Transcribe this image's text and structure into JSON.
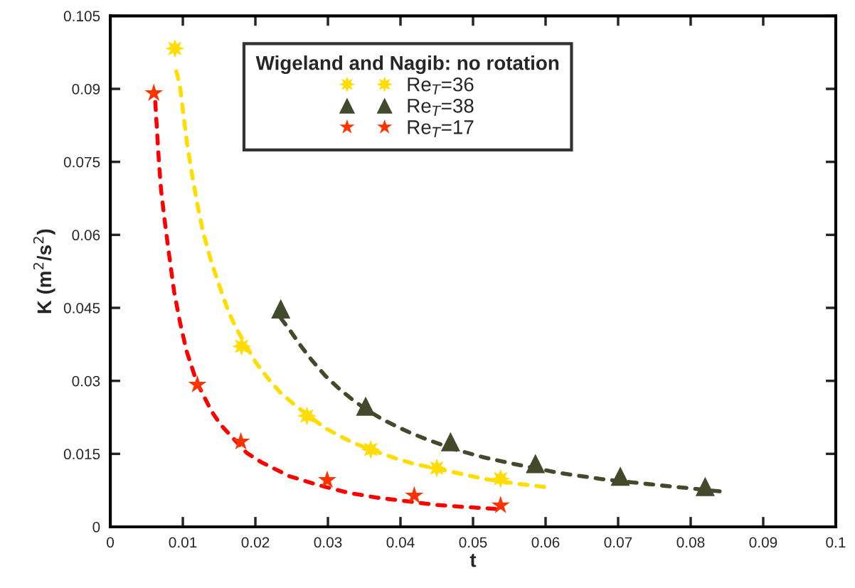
{
  "chart_data": {
    "type": "scatter",
    "xlabel": "t",
    "ylabel": "K (m$^{2}$/s$^{2}$)",
    "legend_title": "Wigeland and Nagib: no rotation",
    "legend": "top",
    "xlim": [
      0,
      0.1
    ],
    "xticks": [
      0,
      0.01,
      0.02,
      0.03,
      0.04,
      0.05,
      0.06,
      0.07,
      0.08,
      0.09,
      0.1
    ],
    "ylim": [
      0,
      0.105
    ],
    "yticks": [
      0,
      0.015,
      0.03,
      0.045,
      0.06,
      0.075,
      0.09,
      0.105
    ],
    "grid": false,
    "series": [
      {
        "name": "Re$_{T}$=36",
        "marker": "cross",
        "color": "#ffdd00",
        "x": [
          0.0089,
          0.0181,
          0.0271,
          0.0359,
          0.045,
          0.0538
        ],
        "values": [
          0.0983,
          0.0371,
          0.0228,
          0.0159,
          0.0121,
          0.0099
        ]
      },
      {
        "name": "Re$_{T}$=38",
        "marker": "triangle",
        "color": "#434a2b",
        "x": [
          0.0235,
          0.0352,
          0.0469,
          0.0586,
          0.0703,
          0.082
        ],
        "values": [
          0.0448,
          0.0248,
          0.0175,
          0.013,
          0.0104,
          0.0083
        ]
      },
      {
        "name": "Re$_{T}$=17",
        "marker": "star",
        "color": "#ff3300",
        "x": [
          0.006,
          0.012,
          0.018,
          0.0299,
          0.0419,
          0.0538
        ],
        "values": [
          0.0891,
          0.0292,
          0.0175,
          0.0096,
          0.0064,
          0.0044
        ]
      },
      {
        "type": "line",
        "line_style": "dashed",
        "color": "#ffdd00",
        "x": [
          0.0091,
          0.0096,
          0.0101,
          0.0106,
          0.0113,
          0.012,
          0.0128,
          0.0139,
          0.0152,
          0.016,
          0.0169,
          0.0178,
          0.0201,
          0.0218,
          0.0235,
          0.0257,
          0.0296,
          0.0316,
          0.0336,
          0.0375,
          0.0395,
          0.0417,
          0.0477,
          0.0517,
          0.0559,
          0.0598
        ],
        "values": [
          0.0936,
          0.0907,
          0.0844,
          0.0786,
          0.0721,
          0.0663,
          0.0605,
          0.0546,
          0.0488,
          0.0454,
          0.0422,
          0.0396,
          0.0337,
          0.0304,
          0.0275,
          0.0247,
          0.0203,
          0.0187,
          0.0172,
          0.015,
          0.014,
          0.013,
          0.0111,
          0.0098,
          0.0089,
          0.0082
        ]
      },
      {
        "type": "line",
        "line_style": "dashed",
        "color": "#434a2b",
        "x": [
          0.0235,
          0.0248,
          0.0263,
          0.0278,
          0.0296,
          0.0316,
          0.0335,
          0.0355,
          0.0375,
          0.0395,
          0.0417,
          0.0436,
          0.0475,
          0.0517,
          0.0557,
          0.0618,
          0.0678,
          0.076,
          0.084
        ],
        "values": [
          0.0429,
          0.0403,
          0.0371,
          0.0342,
          0.0311,
          0.0283,
          0.026,
          0.0239,
          0.0221,
          0.0206,
          0.0191,
          0.018,
          0.0159,
          0.0142,
          0.0129,
          0.0111,
          0.0098,
          0.0085,
          0.0073
        ]
      },
      {
        "type": "line",
        "line_style": "dashed",
        "color": "#ff0000",
        "x": [
          0.0062,
          0.0067,
          0.007,
          0.0075,
          0.008,
          0.0088,
          0.0096,
          0.0105,
          0.0119,
          0.0139,
          0.0152,
          0.0188,
          0.0208,
          0.0247,
          0.0289,
          0.0328,
          0.0368,
          0.0407,
          0.0449,
          0.0478,
          0.0531
        ],
        "values": [
          0.0873,
          0.0751,
          0.0692,
          0.0629,
          0.0571,
          0.0483,
          0.0421,
          0.0362,
          0.0298,
          0.0239,
          0.021,
          0.0152,
          0.0133,
          0.0104,
          0.0085,
          0.007,
          0.006,
          0.0053,
          0.0045,
          0.0042,
          0.0037
        ]
      }
    ]
  }
}
